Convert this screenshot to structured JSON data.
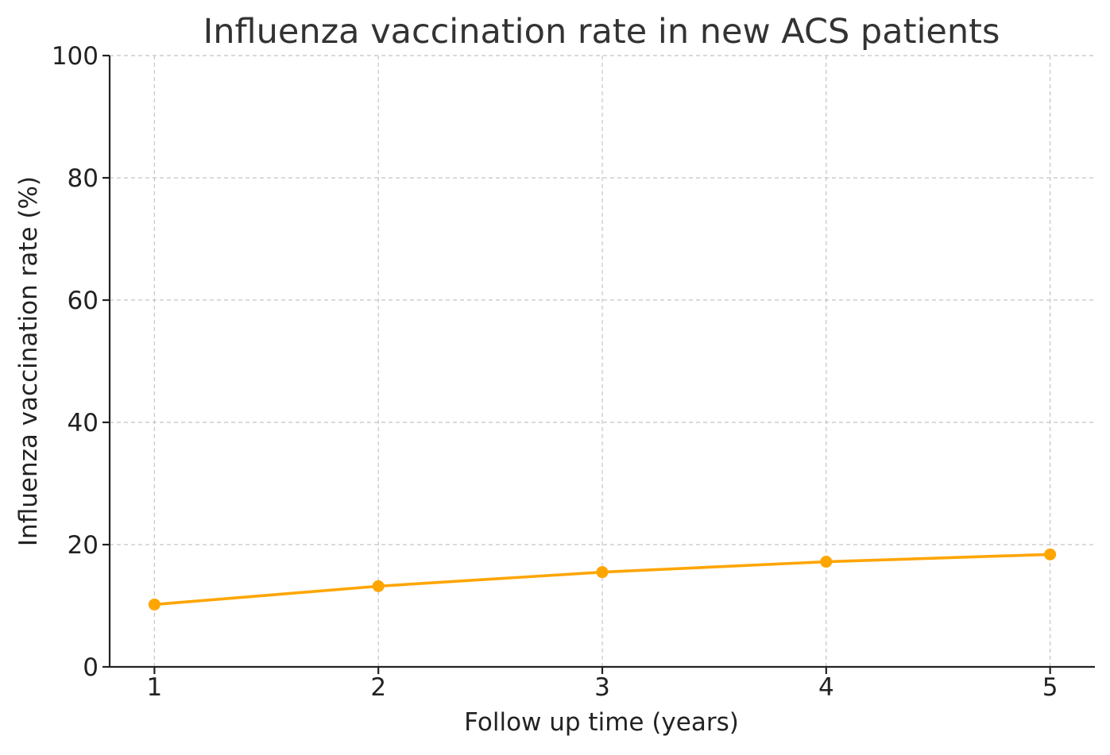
{
  "chart_data": {
    "type": "line",
    "title": "Influenza vaccination rate in new ACS patients",
    "xlabel": "Follow up time (years)",
    "ylabel": "Influenza vaccination rate (%)",
    "x": [
      1,
      2,
      3,
      4,
      5
    ],
    "x_ticks": [
      "1",
      "2",
      "3",
      "4",
      "5"
    ],
    "xlim": [
      0.8,
      5.2
    ],
    "ylim": [
      0,
      100
    ],
    "y_ticks": [
      "0",
      "20",
      "40",
      "60",
      "80",
      "100"
    ],
    "grid": true,
    "series": [
      {
        "values": [
          10.2,
          13.2,
          15.5,
          17.2,
          18.4
        ],
        "color": "#FFA500",
        "marker": "circle"
      }
    ]
  }
}
